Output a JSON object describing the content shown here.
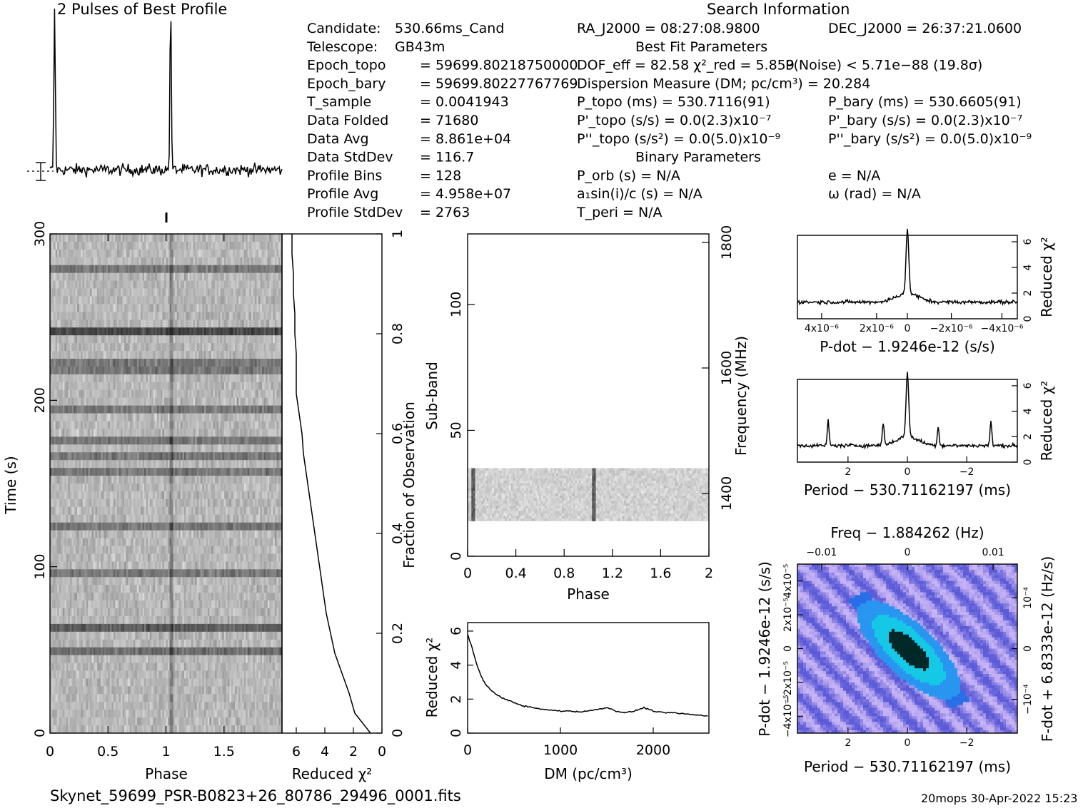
{
  "header": {
    "left_title": "2 Pulses of Best Profile",
    "right_title": "Search Information"
  },
  "info_left": [
    {
      "k": "Candidate:",
      "v": "530.66ms_Cand"
    },
    {
      "k": "Telescope:",
      "v": "GB43m"
    },
    {
      "k": "Epoch_topo",
      "v": "= 59699.80218750000"
    },
    {
      "k": "Epoch_bary",
      "v": "= 59699.80227767769"
    },
    {
      "k": "T_sample",
      "v": "=  0.0041943"
    },
    {
      "k": "Data Folded",
      "v": "=  71680"
    },
    {
      "k": "Data Avg",
      "v": "=  8.861e+04"
    },
    {
      "k": "Data StdDev",
      "v": "=  116.7"
    },
    {
      "k": "Profile Bins",
      "v": "=  128"
    },
    {
      "k": "Profile Avg",
      "v": "=  4.958e+07"
    },
    {
      "k": "Profile StdDev",
      "v": "=  2763"
    }
  ],
  "info_mid": [
    "RA_J2000 = 08:27:08.9800",
    "Best Fit Parameters",
    "DOF_eff = 82.58  χ²_red = 5.859",
    "Dispersion Measure (DM; pc/cm³) = 20.284",
    "P_topo (ms) =  530.7116(91)",
    "P'_topo (s/s) = 0.0(2.3)x10⁻⁷",
    "P''_topo (s/s²) = 0.0(5.0)x10⁻⁹",
    "Binary Parameters",
    "P_orb (s) = N/A",
    "a₁sin(i)/c (s) = N/A",
    "T_peri = N/A"
  ],
  "info_right": [
    "DEC_J2000 = 26:37:21.0600",
    "P(Noise) < 5.71e−88  (19.8σ)",
    "P_bary (ms) =  530.6605(91)",
    "P'_bary (s/s) = 0.0(2.3)x10⁻⁷",
    "P''_bary (s/s²) = 0.0(5.0)x10⁻⁹",
    "e = N/A",
    "ω (rad) = N/A"
  ],
  "footer": {
    "filename": "Skynet_59699_PSR-B0823+26_80786_29496_0001.fits",
    "stamp": "20mops 30-Apr-2022 15:23"
  },
  "chart_data": [
    {
      "type": "line",
      "id": "profile",
      "title": "2 Pulses of Best Profile",
      "x": [
        0,
        2
      ],
      "peaks_phase": [
        0.04,
        1.04
      ],
      "note_values": "profile intensity normalized 0-1; noise baseline ~0.13"
    },
    {
      "type": "heatmap",
      "id": "time-phase",
      "xlabel": "Phase",
      "ylabel": "Time (s)",
      "xlim": [
        0,
        2
      ],
      "ylim": [
        0,
        300
      ],
      "xticks": [
        "0",
        "0.5",
        "1",
        "1.5"
      ],
      "yticks": [
        "0",
        "100",
        "200",
        "300"
      ]
    },
    {
      "type": "line",
      "id": "time-chi2",
      "xlabel": "Reduced χ²",
      "ylabel": "Fraction of Observation",
      "xticks": [
        "6",
        "4",
        "2",
        "0"
      ],
      "yticks": [
        "0",
        "0.2",
        "0.4",
        "0.6",
        "0.8",
        "1"
      ],
      "points": [
        [
          0.8,
          0
        ],
        [
          1.9,
          0.04
        ],
        [
          2.3,
          0.08
        ],
        [
          2.8,
          0.12
        ],
        [
          3.3,
          0.16
        ],
        [
          3.6,
          0.2
        ],
        [
          3.9,
          0.24
        ],
        [
          4.1,
          0.28
        ],
        [
          4.3,
          0.32
        ],
        [
          4.5,
          0.36
        ],
        [
          4.7,
          0.4
        ],
        [
          4.9,
          0.44
        ],
        [
          5.1,
          0.48
        ],
        [
          5.3,
          0.52
        ],
        [
          5.5,
          0.56
        ],
        [
          5.6,
          0.6
        ],
        [
          5.8,
          0.64
        ],
        [
          6.0,
          0.68
        ],
        [
          6.0,
          0.72
        ],
        [
          6.0,
          0.76
        ],
        [
          6.1,
          0.8
        ],
        [
          6.1,
          0.84
        ],
        [
          6.2,
          0.88
        ],
        [
          6.2,
          0.92
        ],
        [
          6.3,
          0.96
        ],
        [
          6.3,
          1.0
        ]
      ]
    },
    {
      "type": "heatmap",
      "id": "subband-phase",
      "xlabel": "Phase",
      "ylabel": "Sub-band",
      "ylabel_right": "Frequency (MHz)",
      "xlim": [
        0,
        2
      ],
      "ylim": [
        0,
        128
      ],
      "xticks": [
        "0",
        "0.4",
        "0.8",
        "1.2",
        "1.6",
        "2"
      ],
      "yticks": [
        "0",
        "50",
        "100"
      ],
      "yticks_right": [
        "1400",
        "1600",
        "1800"
      ],
      "data_band": [
        14,
        35
      ]
    },
    {
      "type": "line",
      "id": "dm-chi2",
      "xlabel": "DM (pc/cm³)",
      "ylabel": "Reduced χ²",
      "xlim": [
        0,
        2600
      ],
      "ylim": [
        0,
        6.5
      ],
      "xticks": [
        "0",
        "1000",
        "2000"
      ],
      "yticks": [
        "0",
        "2",
        "4",
        "6"
      ],
      "points": [
        [
          0,
          5.8
        ],
        [
          50,
          5.0
        ],
        [
          100,
          4.0
        ],
        [
          150,
          3.3
        ],
        [
          200,
          2.8
        ],
        [
          300,
          2.3
        ],
        [
          400,
          2.0
        ],
        [
          500,
          1.8
        ],
        [
          600,
          1.6
        ],
        [
          700,
          1.5
        ],
        [
          800,
          1.4
        ],
        [
          900,
          1.35
        ],
        [
          1000,
          1.3
        ],
        [
          1100,
          1.3
        ],
        [
          1200,
          1.25
        ],
        [
          1300,
          1.3
        ],
        [
          1400,
          1.4
        ],
        [
          1500,
          1.5
        ],
        [
          1600,
          1.3
        ],
        [
          1700,
          1.2
        ],
        [
          1800,
          1.3
        ],
        [
          1900,
          1.5
        ],
        [
          2000,
          1.3
        ],
        [
          2100,
          1.2
        ],
        [
          2200,
          1.2
        ],
        [
          2300,
          1.15
        ],
        [
          2400,
          1.1
        ],
        [
          2500,
          1.05
        ],
        [
          2600,
          1.0
        ]
      ]
    },
    {
      "type": "line",
      "id": "pdot-chi2",
      "xlabel": "P-dot − 1.9246e-12 (s/s)",
      "ylabel": "Reduced χ²",
      "yticks": [
        "0",
        "2",
        "4",
        "6"
      ],
      "xticks": [
        "4x10⁻⁶",
        "2x10⁻⁶",
        "0",
        "−2x10⁻⁶",
        "−4x10⁻⁶"
      ],
      "peak": 6.0,
      "baseline": 1.3
    },
    {
      "type": "line",
      "id": "period-chi2",
      "xlabel": "Period − 530.71162197 (ms)",
      "ylabel": "Reduced χ²",
      "yticks": [
        "0",
        "2",
        "4",
        "6"
      ],
      "xticks": [
        "2",
        "0",
        "−2"
      ],
      "peak": 6.0,
      "baseline": 1.3
    },
    {
      "type": "heatmap",
      "id": "period-pdot",
      "xlabel": "Period − 530.71162197 (ms)",
      "xlabel_top": "Freq − 1.884262 (Hz)",
      "ylabel": "P-dot − 1.9246e-12 (s/s)",
      "ylabel_right": "F-dot + 6.8333e-12 (Hz/s)",
      "xticks": [
        "2",
        "0",
        "−2"
      ],
      "xticks_top": [
        "−0.01",
        "0",
        "0.01"
      ],
      "yticks": [
        "4x10⁻⁵",
        "2x10⁻⁵",
        "0",
        "−2x10⁻⁵",
        "−4x10⁻⁵"
      ],
      "yticks_right": [
        "10⁻⁴",
        "0",
        "−10⁻⁴"
      ]
    }
  ]
}
